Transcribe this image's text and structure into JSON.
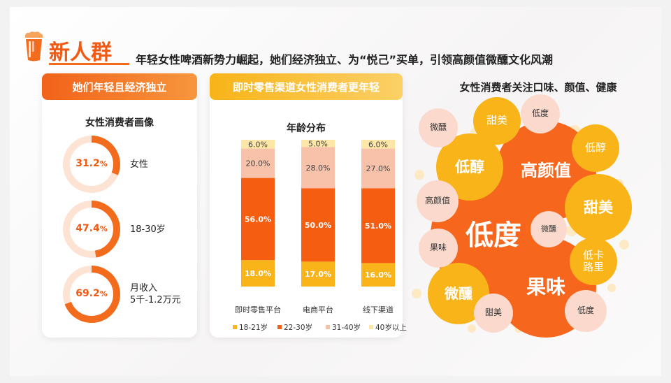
{
  "header": {
    "title": "新人群",
    "subtitle": "年轻女性啤酒新势力崛起，她们经济独立、为“悦己”买单，引领高颜值微醺文化风潮"
  },
  "left_panel": {
    "header": "她们年轻且经济独立",
    "subtitle": "女性消费者画像",
    "items": [
      {
        "value": 31.2,
        "value_text": "31.2",
        "unit": "%",
        "label": "女性"
      },
      {
        "value": 47.4,
        "value_text": "47.4",
        "unit": "%",
        "label": "18-30岁"
      },
      {
        "value": 69.2,
        "value_text": "69.2",
        "unit": "%",
        "label": "月收入\n5千-1.2万元"
      }
    ]
  },
  "mid_panel": {
    "header": "即时零售渠道女性消费者更年轻"
  },
  "right_panel": {
    "title": "女性消费者关注口味、颜值、健康",
    "bubbles": [
      "低度",
      "高颜值",
      "果味",
      "低醇",
      "甜美",
      "微醺",
      "甜美",
      "低醇",
      "低卡\n路里",
      "低度",
      "高颜值",
      "微醺",
      "果味",
      "甜美",
      "低度",
      "微醺"
    ]
  },
  "colors": {
    "accent": "#f36b1c",
    "age_18_21": "#f8b418",
    "age_22_30": "#f55d10",
    "age_31_40": "#f8c1a9",
    "age_40_plus": "#fde6a6",
    "ring_track": "#fde3d3"
  },
  "chart_data": {
    "type": "bar",
    "stacked": true,
    "title": "年龄分布",
    "categories": [
      "即时零售平台",
      "电商平台",
      "线下渠道"
    ],
    "series": [
      {
        "name": "18-21岁",
        "values": [
          18.0,
          17.0,
          16.0
        ],
        "labels": [
          "18.0%",
          "17.0%",
          "16.0%"
        ]
      },
      {
        "name": "22-30岁",
        "values": [
          56.0,
          50.0,
          51.0
        ],
        "labels": [
          "56.0%",
          "50.0%",
          "51.0%"
        ]
      },
      {
        "name": "31-40岁",
        "values": [
          20.0,
          28.0,
          27.0
        ],
        "labels": [
          "20.0%",
          "28.0%",
          "27.0%"
        ]
      },
      {
        "name": "40岁以上",
        "values": [
          6.0,
          5.0,
          6.0
        ],
        "labels": [
          "6.0%",
          "5.0%",
          "6.0%"
        ]
      }
    ],
    "ylim": [
      0,
      100
    ],
    "legend": "bottom"
  }
}
